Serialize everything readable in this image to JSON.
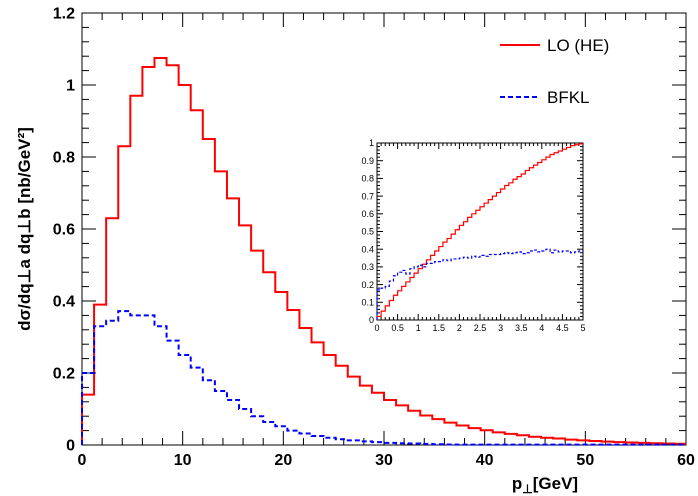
{
  "chart_data": [
    {
      "type": "line",
      "title": "",
      "xlabel_main": "p",
      "xlabel_sub": "⊥",
      "xlabel_rest": "[GeV]",
      "ylabel": "dσ/dq⊥a dq⊥b [nb/GeV²]",
      "xlim": [
        0,
        60
      ],
      "ylim": [
        0,
        1.2
      ],
      "xticks": [
        "0",
        "10",
        "20",
        "30",
        "40",
        "50",
        "60"
      ],
      "yticks": [
        "0",
        "0.2",
        "0.4",
        "0.6",
        "0.8",
        "1",
        "1.2"
      ],
      "legend": {
        "placement": "top-right",
        "entries": [
          "LO (HE)",
          "BFKL"
        ]
      },
      "bin_width": 1.2,
      "series": [
        {
          "name": "LO (HE)",
          "style": "solid",
          "color": "#ff0000",
          "values": [
            0.14,
            0.39,
            0.63,
            0.83,
            0.97,
            1.05,
            1.075,
            1.055,
            1.0,
            0.93,
            0.85,
            0.76,
            0.685,
            0.61,
            0.54,
            0.48,
            0.425,
            0.375,
            0.325,
            0.285,
            0.25,
            0.22,
            0.19,
            0.165,
            0.145,
            0.125,
            0.11,
            0.095,
            0.082,
            0.072,
            0.062,
            0.054,
            0.047,
            0.041,
            0.035,
            0.031,
            0.027,
            0.023,
            0.02,
            0.018,
            0.015,
            0.013,
            0.011,
            0.0095,
            0.008,
            0.007,
            0.006,
            0.005,
            0.004,
            0.0035
          ]
        },
        {
          "name": "BFKL",
          "style": "dashed",
          "color": "#0000ff",
          "values": [
            0.2,
            0.33,
            0.345,
            0.372,
            0.36,
            0.36,
            0.33,
            0.29,
            0.25,
            0.215,
            0.18,
            0.15,
            0.125,
            0.1,
            0.08,
            0.064,
            0.052,
            0.04,
            0.032,
            0.025,
            0.02,
            0.016,
            0.013,
            0.01,
            0.008,
            0.006,
            0.005,
            0.004,
            0.003,
            0.002,
            0.0015,
            0.001,
            0.001,
            0.001,
            0.001,
            0.001,
            0.001,
            0.001,
            0.001,
            0.001,
            0.001,
            0.001,
            0.001,
            0.001,
            0.001,
            0.001,
            0.001,
            0.001,
            0.001,
            0.001
          ]
        }
      ]
    },
    {
      "type": "line",
      "title": "",
      "xlim": [
        0,
        5
      ],
      "ylim": [
        0,
        1
      ],
      "xticks": [
        "0",
        "0.5",
        "1",
        "1.5",
        "2",
        "2.5",
        "3",
        "3.5",
        "4",
        "4.5",
        "5"
      ],
      "yticks": [
        "0",
        "0.1",
        "0.2",
        "0.3",
        "0.4",
        "0.5",
        "0.6",
        "0.7",
        "0.8",
        "0.9",
        "1"
      ],
      "bin_width": 0.1,
      "series": [
        {
          "name": "LO (HE)",
          "style": "solid",
          "color": "#ff0000",
          "values": [
            0.02,
            0.05,
            0.08,
            0.11,
            0.14,
            0.165,
            0.19,
            0.215,
            0.24,
            0.265,
            0.29,
            0.315,
            0.34,
            0.365,
            0.39,
            0.415,
            0.44,
            0.46,
            0.485,
            0.51,
            0.535,
            0.555,
            0.58,
            0.6,
            0.62,
            0.64,
            0.66,
            0.68,
            0.7,
            0.72,
            0.74,
            0.76,
            0.775,
            0.795,
            0.81,
            0.825,
            0.845,
            0.86,
            0.875,
            0.89,
            0.905,
            0.92,
            0.935,
            0.945,
            0.955,
            0.965,
            0.975,
            0.985,
            0.99,
            0.995
          ]
        },
        {
          "name": "BFKL",
          "style": "dashed",
          "color": "#0000ff",
          "values": [
            0.17,
            0.18,
            0.19,
            0.22,
            0.25,
            0.27,
            0.28,
            0.26,
            0.29,
            0.3,
            0.31,
            0.3,
            0.32,
            0.32,
            0.33,
            0.33,
            0.34,
            0.335,
            0.345,
            0.345,
            0.35,
            0.355,
            0.35,
            0.36,
            0.355,
            0.365,
            0.36,
            0.37,
            0.37,
            0.37,
            0.375,
            0.38,
            0.375,
            0.38,
            0.385,
            0.375,
            0.38,
            0.39,
            0.395,
            0.385,
            0.39,
            0.4,
            0.38,
            0.395,
            0.385,
            0.39,
            0.39,
            0.38,
            0.385,
            0.39
          ]
        }
      ]
    }
  ]
}
